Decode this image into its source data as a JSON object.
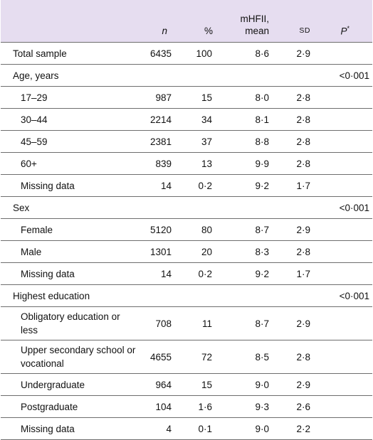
{
  "header": {
    "label_col": "",
    "n": "n",
    "pct": "%",
    "mean_line1": "mHFII,",
    "mean_line2": "mean",
    "sd": "SD",
    "p": "P",
    "p_sup": "*"
  },
  "rows": [
    {
      "label": "Total sample",
      "n": "6435",
      "pct": "100",
      "mean": "8·6",
      "sd": "2·9",
      "p": ""
    },
    {
      "label": "Age, years",
      "n": "",
      "pct": "",
      "mean": "",
      "sd": "",
      "p": "<0·001"
    },
    {
      "label": "17–29",
      "n": "987",
      "pct": "15",
      "mean": "8·0",
      "sd": "2·8",
      "p": ""
    },
    {
      "label": "30–44",
      "n": "2214",
      "pct": "34",
      "mean": "8·1",
      "sd": "2·8",
      "p": ""
    },
    {
      "label": "45–59",
      "n": "2381",
      "pct": "37",
      "mean": "8·8",
      "sd": "2·8",
      "p": ""
    },
    {
      "label": "60+",
      "n": "839",
      "pct": "13",
      "mean": "9·9",
      "sd": "2·8",
      "p": ""
    },
    {
      "label": "Missing data",
      "n": "14",
      "pct": "0·2",
      "mean": "9·2",
      "sd": "1·7",
      "p": ""
    },
    {
      "label": "Sex",
      "n": "",
      "pct": "",
      "mean": "",
      "sd": "",
      "p": "<0·001"
    },
    {
      "label": "Female",
      "n": "5120",
      "pct": "80",
      "mean": "8·7",
      "sd": "2·9",
      "p": ""
    },
    {
      "label": "Male",
      "n": "1301",
      "pct": "20",
      "mean": "8·3",
      "sd": "2·8",
      "p": ""
    },
    {
      "label": "Missing data",
      "n": "14",
      "pct": "0·2",
      "mean": "9·2",
      "sd": "1·7",
      "p": ""
    },
    {
      "label": "Highest education",
      "n": "",
      "pct": "",
      "mean": "",
      "sd": "",
      "p": "<0·001"
    },
    {
      "label": "Obligatory education or less",
      "n": "708",
      "pct": "11",
      "mean": "8·7",
      "sd": "2·9",
      "p": ""
    },
    {
      "label": "Upper secondary school or vocational",
      "n": "4655",
      "pct": "72",
      "mean": "8·5",
      "sd": "2·8",
      "p": ""
    },
    {
      "label": "Undergraduate",
      "n": "964",
      "pct": "15",
      "mean": "9·0",
      "sd": "2·9",
      "p": ""
    },
    {
      "label": "Postgraduate",
      "n": "104",
      "pct": "1·6",
      "mean": "9·3",
      "sd": "2·6",
      "p": ""
    },
    {
      "label": "Missing data",
      "n": "4",
      "pct": "0·1",
      "mean": "9·0",
      "sd": "2·2",
      "p": ""
    }
  ]
}
